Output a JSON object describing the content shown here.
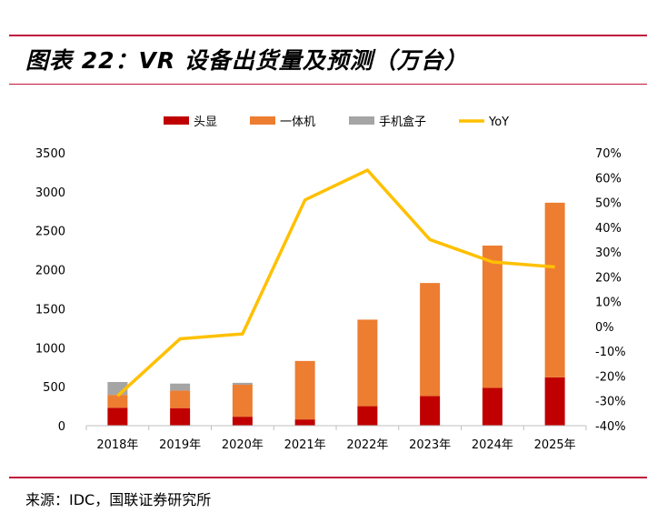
{
  "title": "图表 22：VR 设备出货量及预测（万台）",
  "source": "来源：IDC，国联证券研究所",
  "colors": {
    "rule": "#c0143c",
    "head": "#c00000",
    "allinone": "#ed7d31",
    "phonebox": "#a5a5a5",
    "yoy": "#ffc000"
  },
  "chart_data": {
    "type": "bar",
    "stacked": true,
    "categories": [
      "2018年",
      "2019年",
      "2020年",
      "2021年",
      "2022年",
      "2023年",
      "2024年",
      "2025年"
    ],
    "series": [
      {
        "name": "头显",
        "type": "bar",
        "axis": "left",
        "values": [
          230,
          225,
          115,
          80,
          250,
          380,
          485,
          620
        ]
      },
      {
        "name": "一体机",
        "type": "bar",
        "axis": "left",
        "values": [
          165,
          225,
          410,
          750,
          1110,
          1450,
          1825,
          2240
        ]
      },
      {
        "name": "手机盒子",
        "type": "bar",
        "axis": "left",
        "values": [
          165,
          90,
          25,
          0,
          0,
          0,
          0,
          0
        ]
      },
      {
        "name": "YoY",
        "type": "line",
        "axis": "right",
        "values": [
          -28,
          -5,
          -3,
          51,
          63,
          35,
          26,
          24
        ]
      }
    ],
    "y_left": {
      "min": 0,
      "max": 3500,
      "step": 500,
      "ticks": [
        "0",
        "500",
        "1000",
        "1500",
        "2000",
        "2500",
        "3000",
        "3500"
      ]
    },
    "y_right": {
      "min": -40,
      "max": 70,
      "step": 10,
      "ticks": [
        "-40%",
        "-30%",
        "-20%",
        "-10%",
        "0%",
        "10%",
        "20%",
        "30%",
        "40%",
        "50%",
        "60%",
        "70%"
      ]
    },
    "legend_position": "top"
  }
}
